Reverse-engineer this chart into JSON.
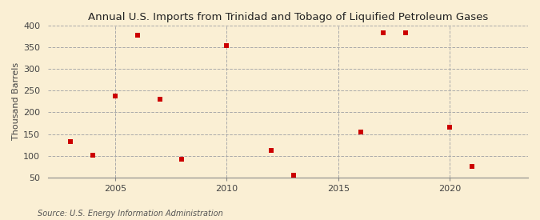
{
  "title": "Annual U.S. Imports from Trinidad and Tobago of Liquified Petroleum Gases",
  "ylabel": "Thousand Barrels",
  "source": "Source: U.S. Energy Information Administration",
  "background_color": "#faefd4",
  "xlim": [
    2002.0,
    2023.5
  ],
  "ylim": [
    50,
    400
  ],
  "yticks": [
    50,
    100,
    150,
    200,
    250,
    300,
    350,
    400
  ],
  "xticks": [
    2005,
    2010,
    2015,
    2020
  ],
  "vlines": [
    2005,
    2010,
    2015,
    2020
  ],
  "marker_color": "#cc0000",
  "marker_size": 5,
  "years": [
    2003,
    2004,
    2005,
    2006,
    2007,
    2008,
    2010,
    2012,
    2013,
    2016,
    2017,
    2018,
    2020,
    2021
  ],
  "values": [
    132,
    101,
    238,
    378,
    230,
    91,
    354,
    112,
    55,
    154,
    384,
    384,
    165,
    75
  ]
}
